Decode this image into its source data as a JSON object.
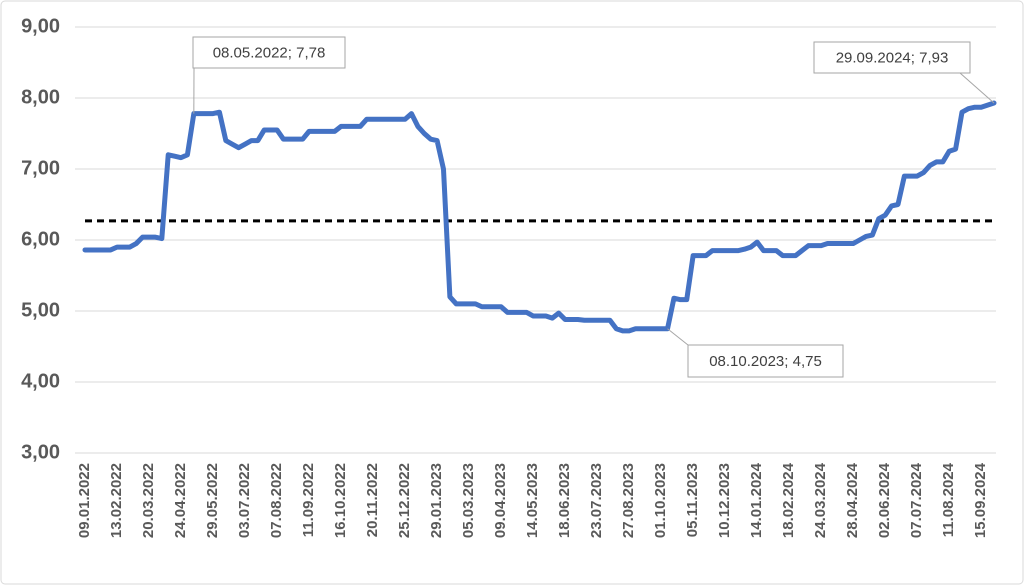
{
  "chart_data": {
    "type": "line",
    "categories": [
      "09.01.2022",
      null,
      null,
      null,
      null,
      "13.02.2022",
      null,
      null,
      null,
      null,
      "20.03.2022",
      null,
      null,
      null,
      null,
      "24.04.2022",
      null,
      null,
      null,
      null,
      "29.05.2022",
      null,
      null,
      null,
      null,
      "03.07.2022",
      null,
      null,
      null,
      null,
      "07.08.2022",
      null,
      null,
      null,
      null,
      "11.09.2022",
      null,
      null,
      null,
      null,
      "16.10.2022",
      null,
      null,
      null,
      null,
      "20.11.2022",
      null,
      null,
      null,
      null,
      "25.12.2022",
      null,
      null,
      null,
      null,
      "29.01.2023",
      null,
      null,
      null,
      null,
      "05.03.2023",
      null,
      null,
      null,
      null,
      "09.04.2023",
      null,
      null,
      null,
      null,
      "14.05.2023",
      null,
      null,
      null,
      null,
      "18.06.2023",
      null,
      null,
      null,
      null,
      "23.07.2023",
      null,
      null,
      null,
      null,
      "27.08.2023",
      null,
      null,
      null,
      null,
      "01.10.2023",
      null,
      null,
      null,
      null,
      "05.11.2023",
      null,
      null,
      null,
      null,
      "10.12.2023",
      null,
      null,
      null,
      null,
      "14.01.2024",
      null,
      null,
      null,
      null,
      "18.02.2024",
      null,
      null,
      null,
      null,
      "24.03.2024",
      null,
      null,
      null,
      null,
      "28.04.2024",
      null,
      null,
      null,
      null,
      "02.06.2024",
      null,
      null,
      null,
      null,
      "07.07.2024",
      null,
      null,
      null,
      null,
      "11.08.2024",
      null,
      null,
      null,
      null,
      "15.09.2024",
      null,
      null
    ],
    "series": [
      {
        "color": "#4472c4",
        "values": [
          5.86,
          5.86,
          5.86,
          5.86,
          5.86,
          5.9,
          5.9,
          5.9,
          5.95,
          6.04,
          6.04,
          6.04,
          6.02,
          7.2,
          7.18,
          7.16,
          7.2,
          7.78,
          7.78,
          7.78,
          7.78,
          7.8,
          7.4,
          7.35,
          7.3,
          7.35,
          7.4,
          7.4,
          7.55,
          7.55,
          7.55,
          7.42,
          7.42,
          7.42,
          7.42,
          7.53,
          7.53,
          7.53,
          7.53,
          7.53,
          7.6,
          7.6,
          7.6,
          7.6,
          7.7,
          7.7,
          7.7,
          7.7,
          7.7,
          7.7,
          7.7,
          7.78,
          7.6,
          7.5,
          7.42,
          7.4,
          7.0,
          5.2,
          5.1,
          5.1,
          5.1,
          5.1,
          5.06,
          5.06,
          5.06,
          5.06,
          4.98,
          4.98,
          4.98,
          4.98,
          4.93,
          4.93,
          4.93,
          4.9,
          4.97,
          4.88,
          4.88,
          4.88,
          4.87,
          4.87,
          4.87,
          4.87,
          4.87,
          4.75,
          4.72,
          4.72,
          4.75,
          4.75,
          4.75,
          4.75,
          4.75,
          4.75,
          5.18,
          5.16,
          5.16,
          5.78,
          5.78,
          5.78,
          5.85,
          5.85,
          5.85,
          5.85,
          5.85,
          5.87,
          5.9,
          5.97,
          5.85,
          5.85,
          5.85,
          5.78,
          5.78,
          5.78,
          5.85,
          5.92,
          5.92,
          5.92,
          5.95,
          5.95,
          5.95,
          5.95,
          5.95,
          6.0,
          6.05,
          6.07,
          6.3,
          6.35,
          6.48,
          6.5,
          6.9,
          6.9,
          6.9,
          6.95,
          7.05,
          7.1,
          7.1,
          7.25,
          7.28,
          7.8,
          7.85,
          7.87,
          7.87,
          7.9,
          7.93
        ]
      }
    ],
    "reference_line": {
      "value": 6.27,
      "color": "#000000",
      "dashed": true
    },
    "ylim": [
      3,
      9
    ],
    "yticks": [
      {
        "value": 3,
        "label": "3,00"
      },
      {
        "value": 4,
        "label": "4,00"
      },
      {
        "value": 5,
        "label": "5,00"
      },
      {
        "value": 6,
        "label": "6,00"
      },
      {
        "value": 7,
        "label": "7,00"
      },
      {
        "value": 8,
        "label": "8,00"
      },
      {
        "value": 9,
        "label": "9,00"
      }
    ],
    "grid": true,
    "annotations": [
      {
        "text": "08.05.2022; 7,78"
      },
      {
        "text": "29.09.2024; 7,93"
      },
      {
        "text": "08.10.2023; 4,75"
      }
    ]
  }
}
